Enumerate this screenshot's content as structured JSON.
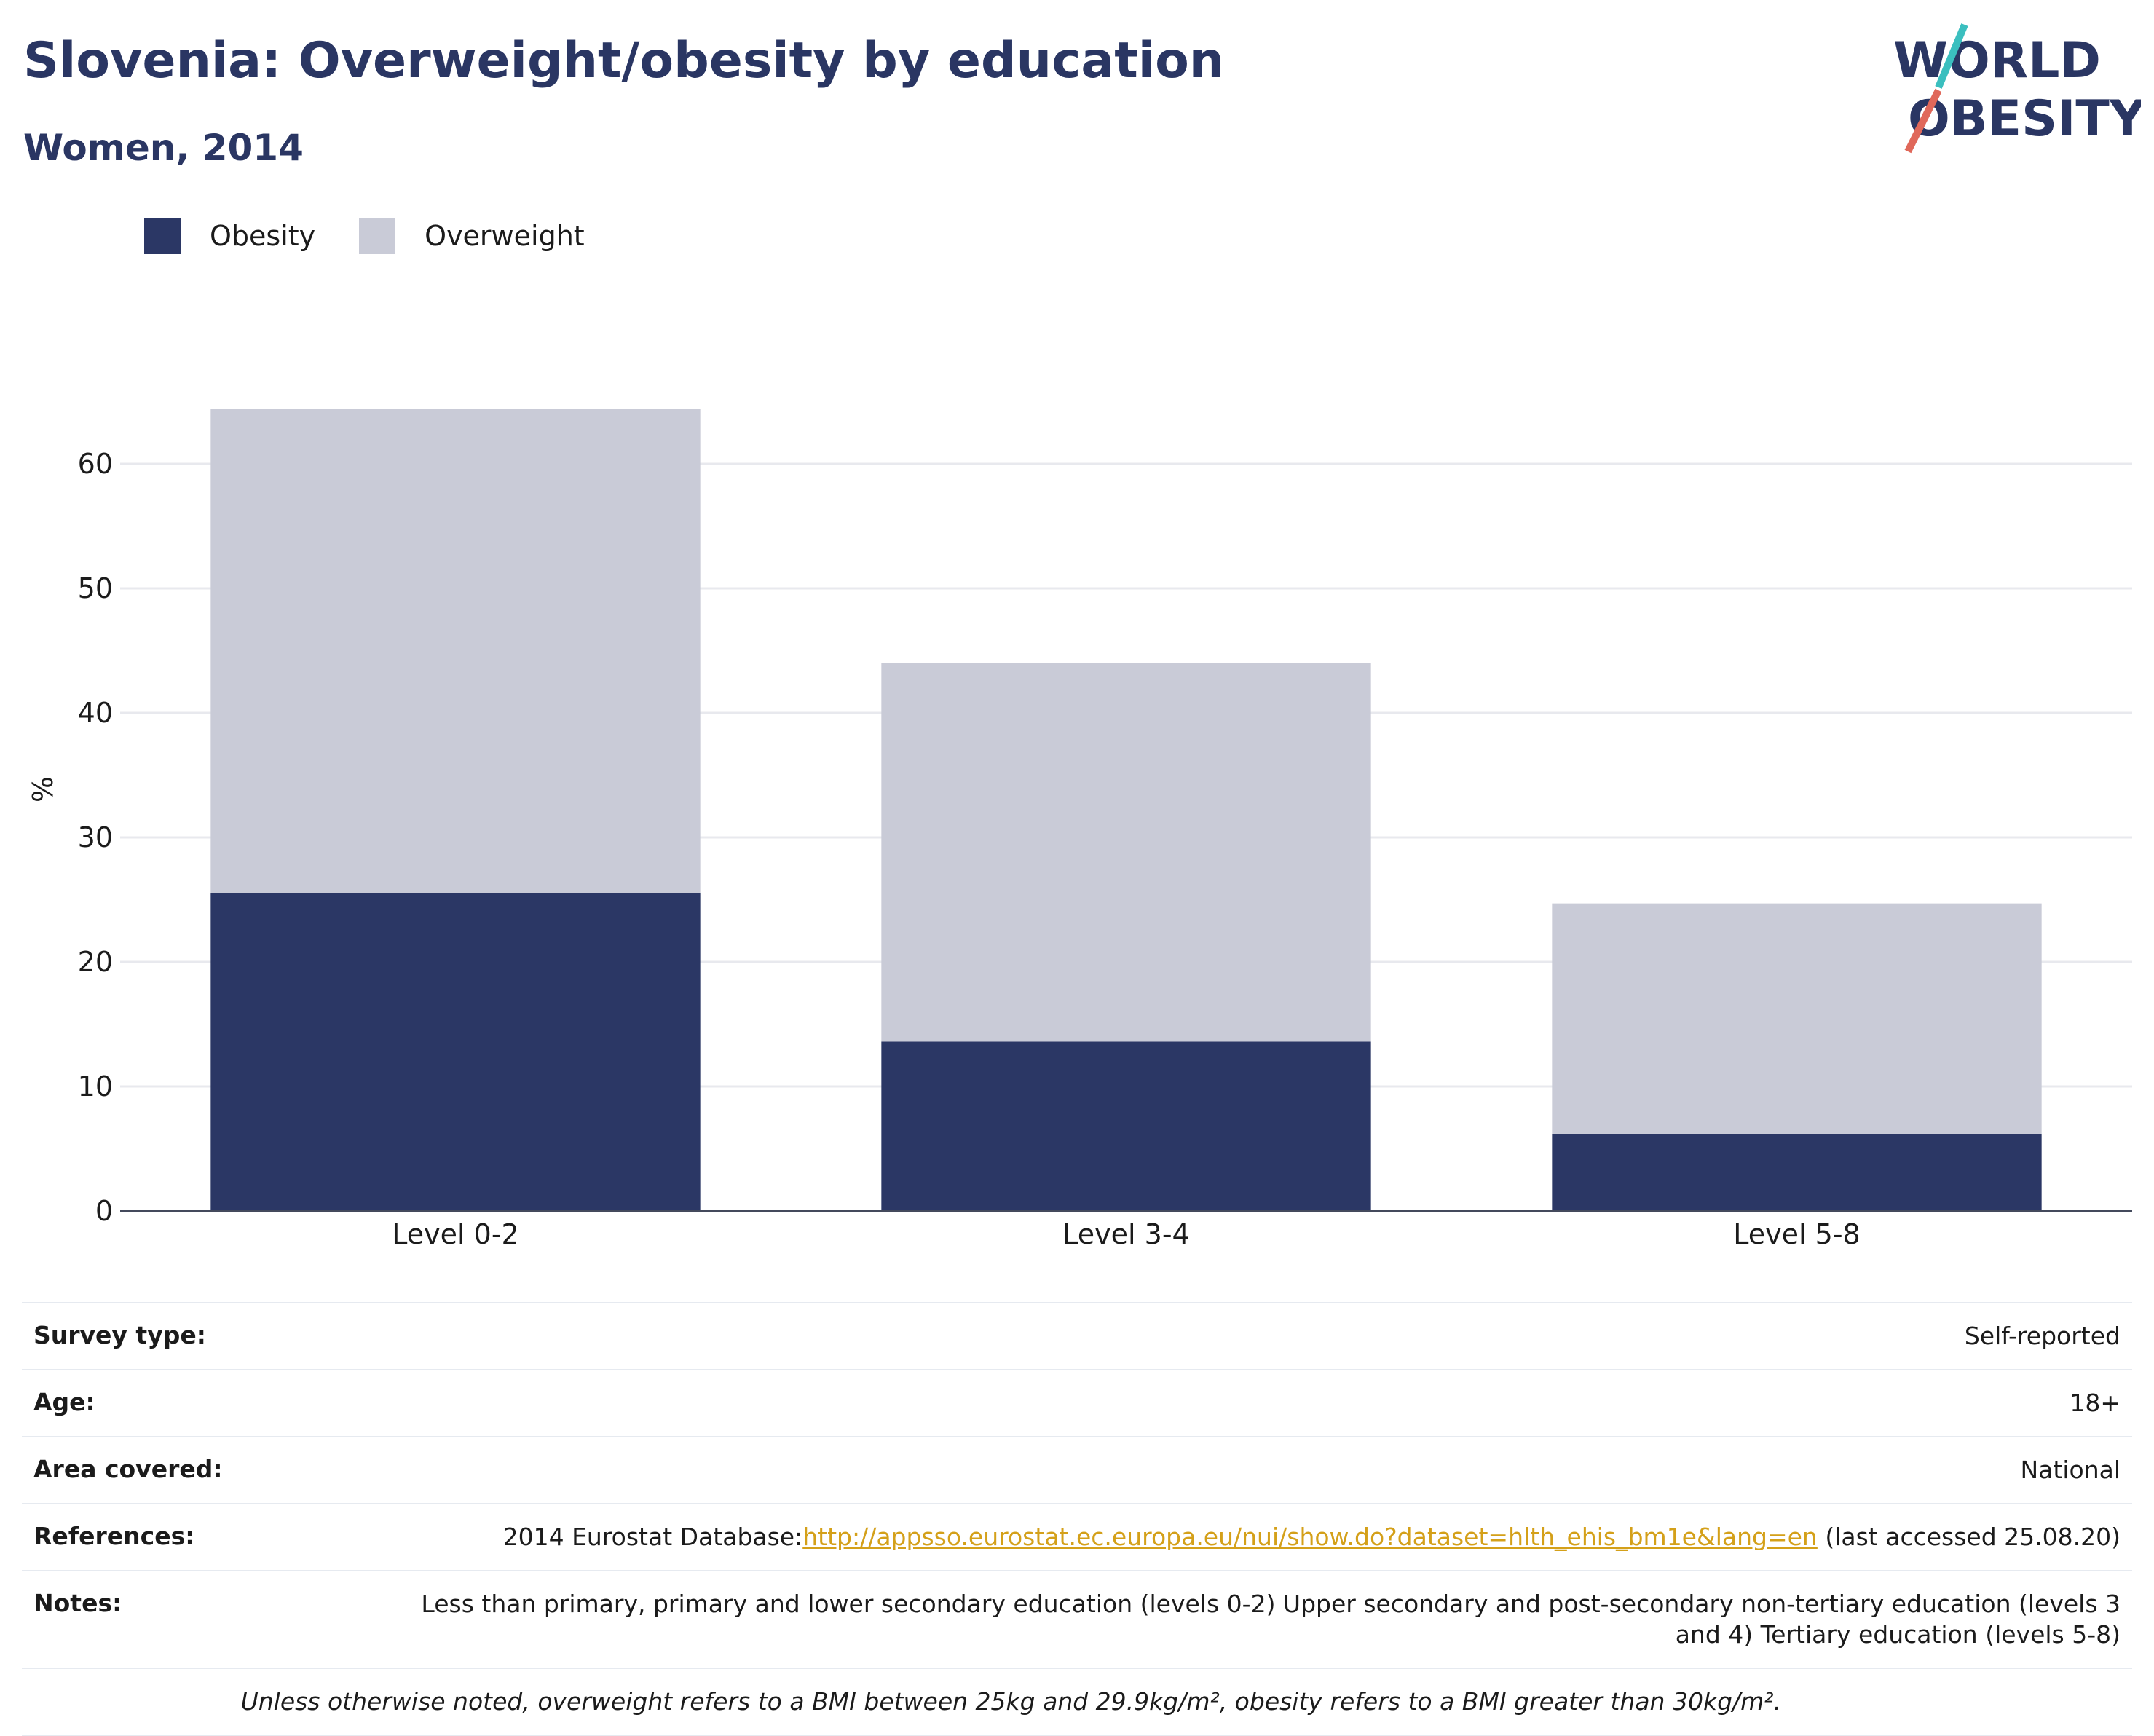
{
  "header": {
    "title": "Slovenia: Overweight/obesity by education",
    "subtitle": "Women, 2014"
  },
  "logo": {
    "line1": "WORLD",
    "line2": "OBESITY"
  },
  "colors": {
    "obesity": "#2b3765",
    "overweight": "#c9cbd7",
    "text": "#2a3663",
    "link": "#d4a019",
    "grid": "#e8e9ee"
  },
  "chart_data": {
    "type": "bar",
    "stacked": true,
    "categories": [
      "Level 0-2",
      "Level 3-4",
      "Level 5-8"
    ],
    "series": [
      {
        "name": "Obesity",
        "values": [
          25.5,
          13.6,
          6.2
        ],
        "color": "#2b3765"
      },
      {
        "name": "Overweight",
        "values": [
          38.9,
          30.4,
          18.5
        ],
        "color": "#c9cbd7"
      }
    ],
    "ylabel": "%",
    "xlabel": "",
    "ylim": [
      0,
      68
    ],
    "yticks": [
      0,
      10,
      20,
      30,
      40,
      50,
      60
    ],
    "grid": true,
    "legend_position": "top-left"
  },
  "info": {
    "survey_type": {
      "label": "Survey type:",
      "value": "Self-reported"
    },
    "age": {
      "label": "Age:",
      "value": "18+"
    },
    "area": {
      "label": "Area covered:",
      "value": "National"
    },
    "references": {
      "label": "References:",
      "prefix": "2014 Eurostat Database:",
      "link": "http://appsso.eurostat.ec.europa.eu/nui/show.do?dataset=hlth_ehis_bm1e&lang=en",
      "suffix": " (last accessed 25.08.20)"
    },
    "notes": {
      "label": "Notes:",
      "value": "Less than primary, primary and lower secondary education (levels 0-2) Upper secondary and post-secondary non-tertiary education (levels 3 and 4) Tertiary education (levels 5-8)"
    },
    "footnote": "Unless otherwise noted, overweight refers to a BMI between 25kg and 29.9kg/m², obesity refers to a BMI greater than 30kg/m²."
  }
}
